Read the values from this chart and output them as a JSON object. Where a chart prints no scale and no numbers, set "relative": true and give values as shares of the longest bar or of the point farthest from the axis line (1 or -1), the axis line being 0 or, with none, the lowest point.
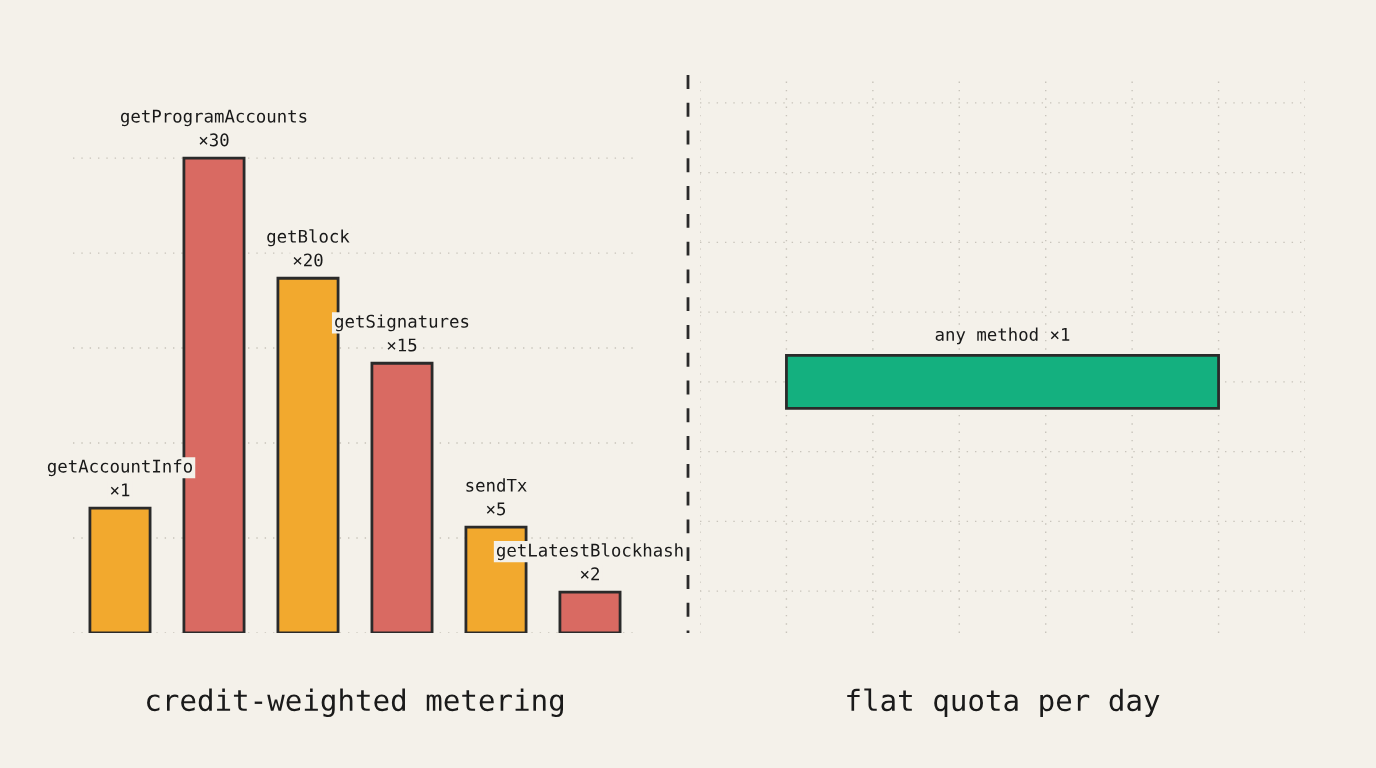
{
  "chart_data": [
    {
      "type": "bar",
      "relative": true,
      "xlabel": "credit-weighted metering",
      "grid": true,
      "categories": [
        "getAccountInfo",
        "getProgramAccounts",
        "getBlock",
        "getSignatures",
        "sendTx",
        "getLatestBlockhash"
      ],
      "values": [
        0.263,
        1,
        0.747,
        0.568,
        0.223,
        0.086
      ],
      "colors": [
        "#f2a92e",
        "#d96a62",
        "#f2a92e",
        "#d96a62",
        "#f2a92e",
        "#d96a62"
      ],
      "annotations": [
        {
          "text": "×1",
          "x": "getAccountInfo",
          "y": 0.263
        },
        {
          "text": "×30",
          "x": "getProgramAccounts",
          "y": 1
        },
        {
          "text": "×20",
          "x": "getBlock",
          "y": 0.747
        },
        {
          "text": "×15",
          "x": "getSignatures",
          "y": 0.568
        },
        {
          "text": "×5",
          "x": "sendTx",
          "y": 0.223
        },
        {
          "text": "×2",
          "x": "getLatestBlockhash",
          "y": 0.086
        }
      ]
    },
    {
      "type": "bar",
      "relative": true,
      "orientation": "horizontal",
      "xlabel": "flat quota per day",
      "grid": true,
      "categories": [
        "any method ×1"
      ],
      "values": [
        1
      ],
      "colors": [
        "#14b07f"
      ]
    }
  ]
}
